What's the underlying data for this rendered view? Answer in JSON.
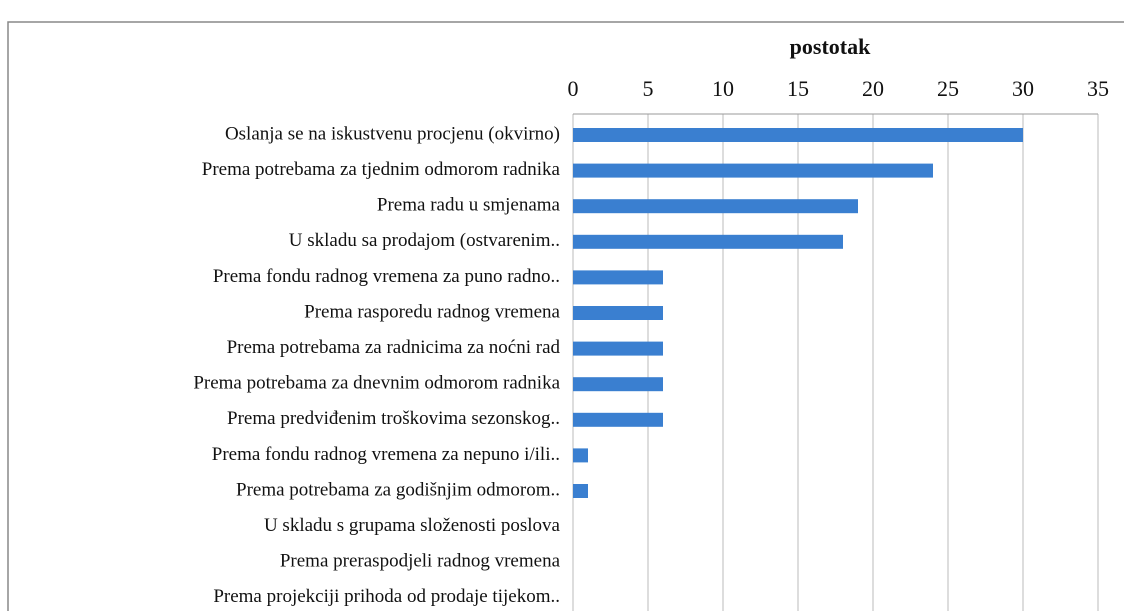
{
  "chart_data": {
    "type": "barh",
    "x_label": "postotak",
    "categories": [
      "Oslanja se na iskustvenu procjenu (okvirno)",
      "Prema potrebama za tjednim odmorom radnika",
      "Prema radu u smjenama",
      "U skladu sa prodajom (ostvarenim..",
      "Prema fondu radnog vremena za puno radno..",
      "Prema rasporedu radnog vremena",
      "Prema potrebama za radnicima za noćni rad",
      "Prema potrebama za dnevnim odmorom radnika",
      "Prema predviđenim troškovima sezonskog..",
      "Prema fondu radnog vremena za nepuno i/ili..",
      "Prema potrebama za godišnjim odmorom..",
      "U skladu s grupama složenosti poslova",
      "Prema preraspodjeli radnog vremena",
      "Prema projekciji prihoda od prodaje tijekom.."
    ],
    "values": [
      30,
      24,
      19,
      18,
      6,
      6,
      6,
      6,
      6,
      1,
      1,
      0,
      0,
      0
    ],
    "color": "#3a7fd0",
    "xlim": [
      0,
      35
    ],
    "xticks": [
      0,
      5,
      10,
      15,
      20,
      25,
      30,
      35
    ],
    "grid": true
  }
}
